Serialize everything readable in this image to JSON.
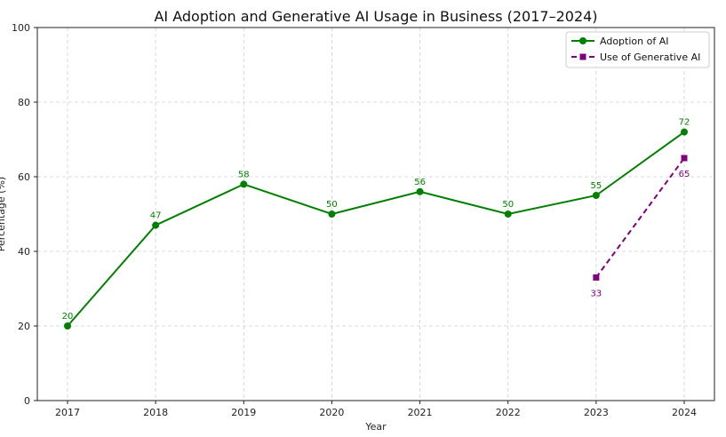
{
  "chart_data": {
    "type": "line",
    "title": "AI Adoption and Generative AI Usage in Business (2017–2024)",
    "xlabel": "Year",
    "ylabel": "Percentage (%)",
    "categories": [
      "2017",
      "2018",
      "2019",
      "2020",
      "2021",
      "2022",
      "2023",
      "2024"
    ],
    "ylim": [
      0,
      100
    ],
    "yticks": [
      0,
      20,
      40,
      60,
      80,
      100
    ],
    "grid": true,
    "legend_position": "top-right",
    "series": [
      {
        "name": "Adoption of AI",
        "color": "#008000",
        "line_style": "solid",
        "marker": "circle",
        "x": [
          "2017",
          "2018",
          "2019",
          "2020",
          "2021",
          "2022",
          "2023",
          "2024"
        ],
        "values": [
          20,
          47,
          58,
          50,
          56,
          50,
          55,
          72
        ],
        "labels": [
          "20",
          "47",
          "58",
          "50",
          "56",
          "50",
          "55",
          "72"
        ],
        "label_position": "above"
      },
      {
        "name": "Use of Generative AI",
        "color": "#800080",
        "line_style": "dashed",
        "marker": "square",
        "x": [
          "2023",
          "2024"
        ],
        "values": [
          33,
          65
        ],
        "labels": [
          "33",
          "65"
        ],
        "label_position": "below"
      }
    ]
  }
}
